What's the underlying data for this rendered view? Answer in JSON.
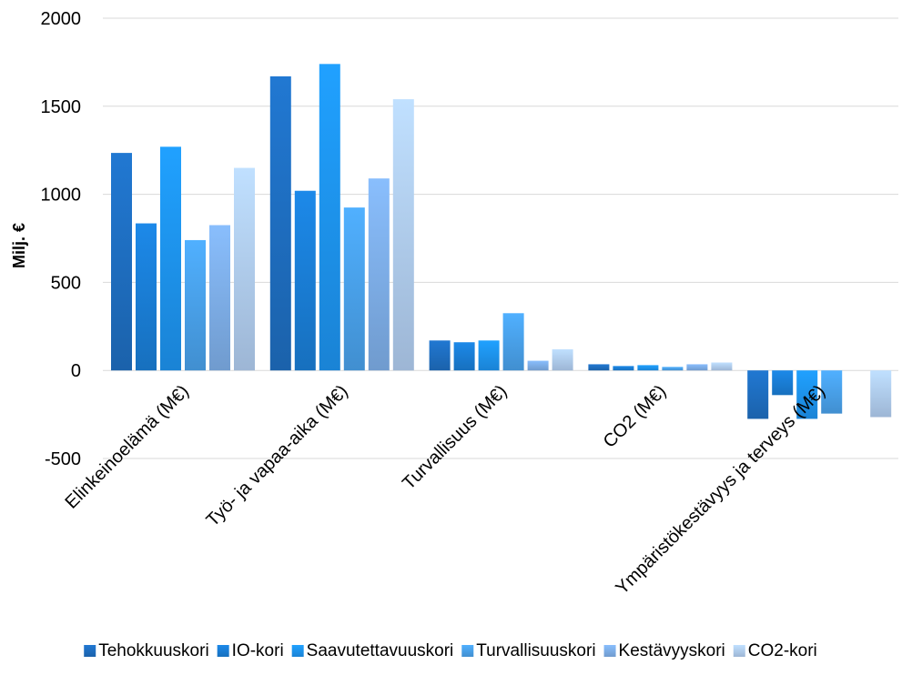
{
  "chart_data": {
    "type": "bar",
    "title": "",
    "xlabel": "",
    "ylabel": "Milj. €",
    "ylim": [
      -500,
      2000
    ],
    "yticks": [
      -500,
      0,
      500,
      1000,
      1500,
      2000
    ],
    "grid": true,
    "legend_position": "bottom",
    "categories": [
      "Elinkeinoelämä (M€)",
      "Työ- ja vapaa-aika (M€)",
      "Turvallisuus (M€)",
      "CO2 (M€)",
      "Ympäristökestävyys ja terveys (M€)"
    ],
    "series": [
      {
        "name": "Tehokkuuskori",
        "color": "#1f6fc2",
        "values": [
          1235,
          1670,
          170,
          35,
          -275
        ]
      },
      {
        "name": "IO-kori",
        "color": "#1a7fd8",
        "values": [
          835,
          1020,
          160,
          25,
          -140
        ]
      },
      {
        "name": "Saavutettavuuskori",
        "color": "#1e95f2",
        "values": [
          1270,
          1740,
          170,
          30,
          -275
        ]
      },
      {
        "name": "Turvallisuuskori",
        "color": "#4aa3ec",
        "values": [
          740,
          925,
          325,
          20,
          -245
        ]
      },
      {
        "name": "Kestävyyskori",
        "color": "#7fb0ea",
        "values": [
          825,
          1090,
          55,
          35,
          0
        ]
      },
      {
        "name": "CO2-kori",
        "color": "#b2cff2",
        "values": [
          1150,
          1540,
          120,
          45,
          -265
        ]
      }
    ]
  }
}
